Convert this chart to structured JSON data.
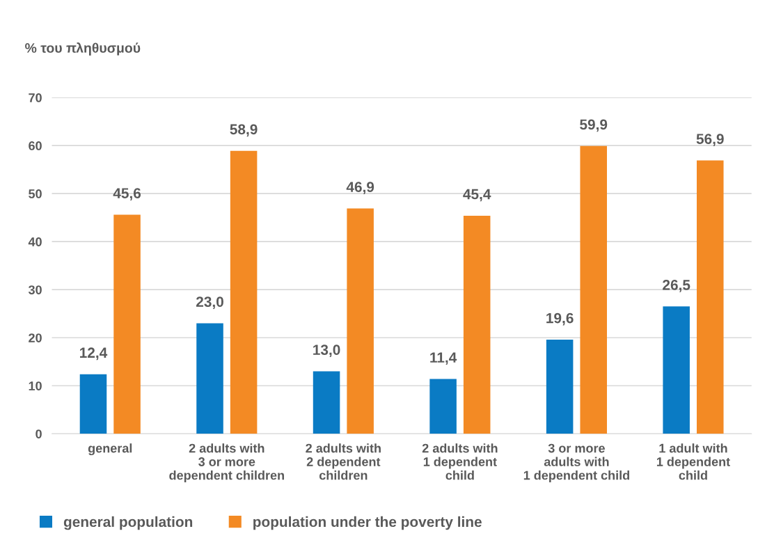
{
  "chart_data": {
    "type": "bar",
    "ylabel": "% του πληθυσμού",
    "categories": [
      "general",
      "2 adults with\n3 or more\ndependent children",
      "2 adults with\n2 dependent\nchildren",
      "2 adults with\n1 dependent\nchild",
      "3 or more\nadults with\n1 dependent child",
      "1 adult with\n1 dependent\nchild"
    ],
    "series": [
      {
        "name": "general population",
        "color": "#0a7bc4",
        "values": [
          12.4,
          23.0,
          13.0,
          11.4,
          19.6,
          26.5
        ],
        "value_labels": [
          "12,4",
          "23,0",
          "13,0",
          "11,4",
          "19,6",
          "26,5"
        ]
      },
      {
        "name": "population under the poverty line",
        "color": "#f38a24",
        "values": [
          45.6,
          58.9,
          46.9,
          45.4,
          59.9,
          56.9
        ],
        "value_labels": [
          "45,6",
          "58,9",
          "46,9",
          "45,4",
          "59,9",
          "56,9"
        ]
      }
    ],
    "ylim": [
      0,
      70
    ],
    "yticks": [
      0,
      10,
      20,
      30,
      40,
      50,
      60,
      70
    ],
    "grid": "y",
    "legend": "bottom left"
  }
}
